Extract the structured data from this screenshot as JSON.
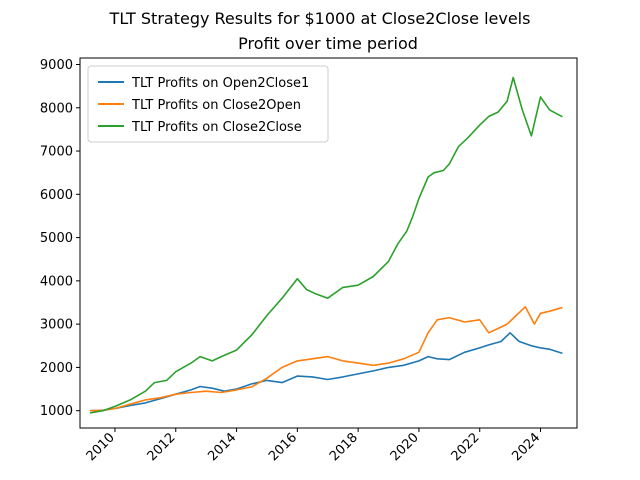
{
  "chart_data": {
    "type": "line",
    "title": "TLT Strategy Results for $1000 at Close2Close levels",
    "subtitle": "Profit over time period",
    "xlabel": "",
    "ylabel": "",
    "xlim": [
      2008.85,
      2025.2
    ],
    "ylim": [
      600,
      9150
    ],
    "xticks": [
      2010,
      2012,
      2014,
      2016,
      2018,
      2020,
      2022,
      2024
    ],
    "yticks": [
      1000,
      2000,
      3000,
      4000,
      5000,
      6000,
      7000,
      8000,
      9000
    ],
    "grid": false,
    "legend_position": "top-left",
    "series": [
      {
        "name": "TLT Profits on Open2Close1",
        "color": "#1f77b4",
        "x": [
          2009.2,
          2009.6,
          2010.0,
          2010.5,
          2011.0,
          2011.5,
          2012.0,
          2012.5,
          2012.8,
          2013.2,
          2013.6,
          2014.0,
          2014.5,
          2015.0,
          2015.5,
          2016.0,
          2016.5,
          2017.0,
          2017.5,
          2018.0,
          2018.5,
          2019.0,
          2019.5,
          2020.0,
          2020.3,
          2020.6,
          2021.0,
          2021.5,
          2022.0,
          2022.3,
          2022.7,
          2023.0,
          2023.3,
          2023.7,
          2024.0,
          2024.3,
          2024.7
        ],
        "y": [
          1000,
          1010,
          1050,
          1120,
          1180,
          1280,
          1380,
          1480,
          1560,
          1520,
          1450,
          1500,
          1620,
          1700,
          1650,
          1800,
          1780,
          1720,
          1780,
          1850,
          1920,
          2000,
          2050,
          2150,
          2250,
          2200,
          2180,
          2350,
          2450,
          2520,
          2600,
          2800,
          2600,
          2500,
          2450,
          2420,
          2330
        ]
      },
      {
        "name": "TLT Profits on Close2Open",
        "color": "#ff7f0e",
        "x": [
          2009.2,
          2009.6,
          2010.0,
          2010.5,
          2011.0,
          2011.5,
          2012.0,
          2012.5,
          2013.0,
          2013.5,
          2014.0,
          2014.5,
          2015.0,
          2015.5,
          2016.0,
          2016.5,
          2017.0,
          2017.5,
          2018.0,
          2018.5,
          2019.0,
          2019.5,
          2020.0,
          2020.3,
          2020.6,
          2021.0,
          2021.5,
          2022.0,
          2022.3,
          2022.6,
          2022.9,
          2023.2,
          2023.5,
          2023.8,
          2024.0,
          2024.3,
          2024.7
        ],
        "y": [
          1000,
          1010,
          1050,
          1150,
          1250,
          1300,
          1380,
          1420,
          1450,
          1420,
          1480,
          1550,
          1750,
          2000,
          2150,
          2200,
          2250,
          2150,
          2100,
          2050,
          2100,
          2200,
          2350,
          2800,
          3100,
          3150,
          3050,
          3100,
          2800,
          2900,
          3000,
          3200,
          3400,
          3000,
          3250,
          3300,
          3380
        ]
      },
      {
        "name": "TLT Profits on Close2Close",
        "color": "#2ca02c",
        "x": [
          2009.2,
          2009.6,
          2010.0,
          2010.5,
          2011.0,
          2011.3,
          2011.7,
          2012.0,
          2012.5,
          2012.8,
          2013.2,
          2013.5,
          2014.0,
          2014.5,
          2015.0,
          2015.5,
          2016.0,
          2016.3,
          2016.6,
          2017.0,
          2017.5,
          2018.0,
          2018.5,
          2019.0,
          2019.3,
          2019.6,
          2019.8,
          2020.0,
          2020.3,
          2020.5,
          2020.8,
          2021.0,
          2021.3,
          2021.6,
          2022.0,
          2022.3,
          2022.6,
          2022.9,
          2023.1,
          2023.4,
          2023.7,
          2024.0,
          2024.3,
          2024.7
        ],
        "y": [
          950,
          1000,
          1100,
          1250,
          1450,
          1650,
          1700,
          1900,
          2100,
          2250,
          2150,
          2250,
          2400,
          2750,
          3200,
          3600,
          4050,
          3800,
          3700,
          3600,
          3850,
          3900,
          4100,
          4450,
          4850,
          5150,
          5500,
          5900,
          6400,
          6500,
          6550,
          6700,
          7100,
          7300,
          7600,
          7800,
          7900,
          8150,
          8700,
          7950,
          7350,
          8250,
          7950,
          7800
        ]
      }
    ]
  }
}
